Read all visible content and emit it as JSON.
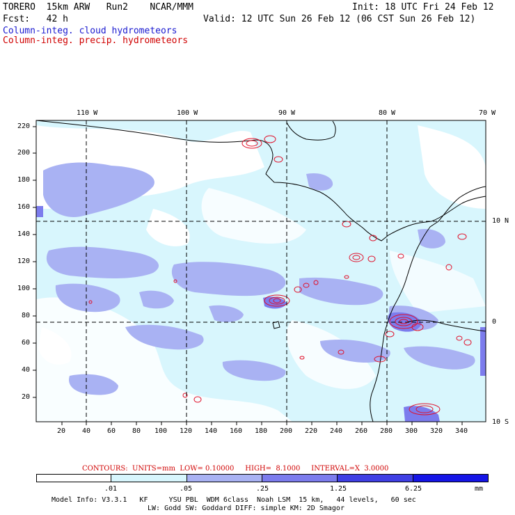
{
  "header": {
    "model": "TORERO  15km ARW   Run2    NCAR/MMM",
    "init": "Init: 18 UTC Fri 24 Feb 12",
    "fcst": "Fcst:   42 h",
    "valid": "Valid: 12 UTC Sun 26 Feb 12 (06 CST Sun 26 Feb 12)",
    "field1": "Column-integ. cloud hydrometeors",
    "field2": "Column-integ. precip. hydrometeors",
    "field1_color": "#1a1ad0",
    "field2_color": "#d00000"
  },
  "axes": {
    "top_lon_labels": [
      "110 W",
      "100 W",
      "90 W",
      "80 W",
      "70 W"
    ],
    "right_lat_labels": [
      "10 N",
      "0",
      "10 S"
    ],
    "left_y_labels": [
      "220",
      "200",
      "180",
      "160",
      "140",
      "120",
      "100",
      "80",
      "60",
      "40",
      "20"
    ],
    "bottom_x_labels": [
      "20",
      "40",
      "60",
      "80",
      "100",
      "120",
      "140",
      "160",
      "180",
      "200",
      "220",
      "240",
      "260",
      "280",
      "300",
      "320"
    ]
  },
  "contours_line": "CONTOURS:  UNITS=mm  LOW= 0.10000     HIGH=  8.1000     INTERVAL=X  3.0000",
  "legend": {
    "labels": [
      ".01",
      ".05",
      ".25",
      "1.25",
      "6.25"
    ],
    "unit": "mm",
    "colors": [
      "#ffffff",
      "#d8f6fd",
      "#a9b2f3",
      "#7c7ced",
      "#3f3fe4",
      "#1515e6"
    ]
  },
  "model_info": {
    "line1": "Model Info: V3.3.1   KF     YSU PBL  WDM 6class  Noah LSM  15 km,   44 levels,   60 sec",
    "line2": "LW: Godd SW: Goddard DIFF: simple KM: 2D Smagor"
  }
}
